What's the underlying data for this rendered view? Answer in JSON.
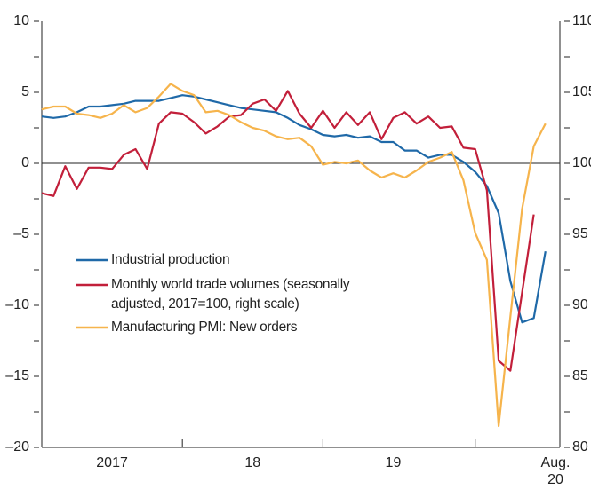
{
  "chart_data": {
    "type": "line",
    "categories": [
      null,
      null,
      null,
      null,
      null,
      null,
      "2017",
      null,
      null,
      null,
      null,
      null,
      null,
      null,
      null,
      null,
      null,
      null,
      "18",
      null,
      null,
      null,
      null,
      null,
      null,
      null,
      null,
      null,
      null,
      null,
      "19",
      null,
      null,
      null,
      null,
      null,
      null,
      null,
      null,
      null,
      null,
      null,
      null,
      null,
      "Aug. 20"
    ],
    "series": [
      {
        "name": "Industrial production",
        "color": "#1f69a8",
        "values": [
          3.3,
          3.2,
          3.3,
          3.6,
          4.0,
          4.0,
          4.1,
          4.2,
          4.4,
          4.4,
          4.4,
          4.6,
          4.8,
          4.7,
          4.5,
          4.3,
          4.1,
          3.9,
          3.8,
          3.7,
          3.6,
          3.2,
          2.7,
          2.4,
          2.0,
          1.9,
          2.0,
          1.8,
          1.9,
          1.5,
          1.5,
          0.9,
          0.9,
          0.4,
          0.6,
          0.6,
          0.1,
          -0.6,
          -1.6,
          -3.5,
          -8.3,
          -11.2,
          -10.9,
          -6.2,
          null
        ]
      },
      {
        "name": "Monthly world trade volumes (seasonally adjusted, 2017=100, right scale)",
        "color": "#c21f3a",
        "axis": "y2",
        "values": [
          97.9,
          97.7,
          99.8,
          98.2,
          99.7,
          99.7,
          99.6,
          100.6,
          101.0,
          99.6,
          102.8,
          103.6,
          103.5,
          102.9,
          102.1,
          102.6,
          103.3,
          103.4,
          104.2,
          104.5,
          103.7,
          105.1,
          103.5,
          102.5,
          103.7,
          102.5,
          103.6,
          102.7,
          103.6,
          101.7,
          103.2,
          103.6,
          102.8,
          103.3,
          102.5,
          102.6,
          101.1,
          101.0,
          98.1,
          86.1,
          85.4,
          90.9,
          96.4,
          null,
          null
        ]
      },
      {
        "name": "Manufacturing PMI: New orders",
        "color": "#f6b44c",
        "values": [
          3.8,
          4.0,
          4.0,
          3.5,
          3.4,
          3.2,
          3.5,
          4.1,
          3.6,
          3.9,
          4.7,
          5.6,
          5.1,
          4.8,
          3.6,
          3.7,
          3.4,
          2.9,
          2.5,
          2.3,
          1.9,
          1.7,
          1.8,
          1.2,
          -0.1,
          0.1,
          0.0,
          0.2,
          -0.5,
          -1.0,
          -0.7,
          -1.0,
          -0.5,
          0.1,
          0.4,
          0.8,
          -1.2,
          -4.9,
          -6.8,
          -18.5,
          -10.8,
          -3.2,
          1.2,
          2.8,
          null
        ]
      }
    ],
    "ylim": [
      -20,
      10
    ],
    "yticks": [
      10,
      5,
      0,
      {
        "value": -5,
        "label": "–5"
      },
      {
        "value": -10,
        "label": "–10"
      },
      {
        "value": -15,
        "label": "–15"
      },
      {
        "value": -20,
        "label": "–20"
      }
    ],
    "yminor": [
      7.5,
      2.5,
      -2.5,
      -7.5,
      -12.5,
      -17.5
    ],
    "y2lim": [
      80,
      110
    ],
    "y2ticks": [
      110,
      105,
      100,
      95,
      90,
      85,
      80
    ],
    "y2minor": [
      107.5,
      102.5,
      97.5,
      92.5,
      87.5,
      82.5
    ],
    "hline": 0,
    "grid": false
  }
}
